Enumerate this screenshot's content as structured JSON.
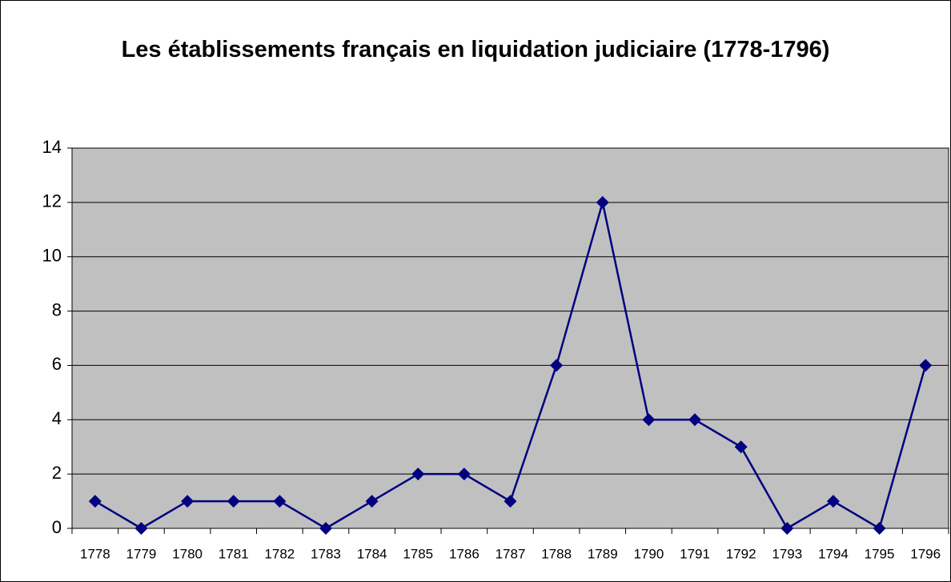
{
  "chart_data": {
    "type": "line",
    "title": "Les établissements français en liquidation judiciaire (1778-1796)",
    "categories": [
      "1778",
      "1779",
      "1780",
      "1781",
      "1782",
      "1783",
      "1784",
      "1785",
      "1786",
      "1787",
      "1788",
      "1789",
      "1790",
      "1791",
      "1792",
      "1793",
      "1794",
      "1795",
      "1796"
    ],
    "values": [
      1,
      0,
      1,
      1,
      1,
      0,
      1,
      2,
      2,
      1,
      6,
      12,
      4,
      4,
      3,
      0,
      1,
      0,
      6
    ],
    "color": "#000080",
    "ylim": [
      0,
      14
    ],
    "yticks": [
      0,
      2,
      4,
      6,
      8,
      10,
      12,
      14
    ],
    "grid": true
  }
}
